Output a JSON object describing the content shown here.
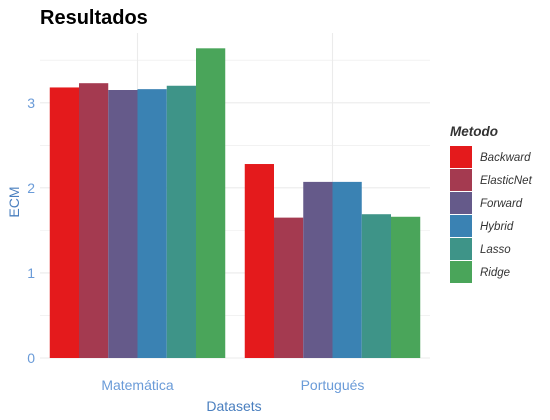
{
  "chart_data": {
    "type": "bar",
    "title": "Resultados",
    "xlabel": "Datasets",
    "ylabel": "ECM",
    "categories": [
      "Matemática",
      "Portugués"
    ],
    "series": [
      {
        "name": "Backward",
        "color": "#E41A1C",
        "values": [
          3.18,
          2.28
        ]
      },
      {
        "name": "ElasticNet",
        "color": "#A43A50",
        "values": [
          3.23,
          1.65
        ]
      },
      {
        "name": "Forward",
        "color": "#655A8A",
        "values": [
          3.15,
          2.07
        ]
      },
      {
        "name": "Hybrid",
        "color": "#3A82B3",
        "values": [
          3.16,
          2.07
        ]
      },
      {
        "name": "Lasso",
        "color": "#3E9488",
        "values": [
          3.2,
          1.69
        ]
      },
      {
        "name": "Ridge",
        "color": "#4AA55A",
        "values": [
          3.64,
          1.66
        ]
      }
    ],
    "yticks": [
      0,
      1,
      2,
      3
    ],
    "ylim": [
      0,
      3.82
    ],
    "grid": true,
    "legend_title": "Metodo",
    "legend_position": "right",
    "colors": {
      "axis_text": "#6A9BD8",
      "axis_title": "#4A7FBF",
      "grid": "#EBEBEB"
    }
  }
}
